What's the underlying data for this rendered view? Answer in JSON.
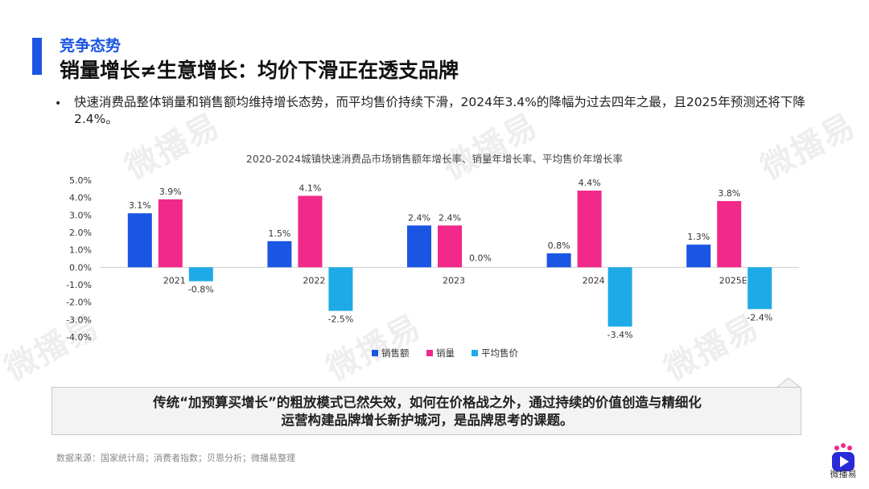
{
  "header": {
    "section_label": "竞争态势",
    "title": "销量增长≠生意增长：均价下滑正在透支品牌"
  },
  "bullet": {
    "marker": "•",
    "text": "快速消费品整体销量和销售额均维持增长态势，而平均售价持续下滑，2024年3.4%的降幅为过去四年之最，且2025年预测还将下降2.4%。"
  },
  "chart_data": {
    "type": "bar",
    "title": "2020-2024城镇快速消费品市场销售额年增长率、销量年增长率、平均售价年增长率",
    "categories": [
      "2021",
      "2022",
      "2023",
      "2024",
      "2025E"
    ],
    "series": [
      {
        "name": "销售额",
        "color": "#1a55e3",
        "values": [
          3.1,
          1.5,
          2.4,
          0.8,
          1.3
        ],
        "labels": [
          "3.1%",
          "1.5%",
          "2.4%",
          "0.8%",
          "1.3%"
        ]
      },
      {
        "name": "销量",
        "color": "#f0298a",
        "values": [
          3.9,
          4.1,
          2.4,
          4.4,
          3.8
        ],
        "labels": [
          "3.9%",
          "4.1%",
          "2.4%",
          "4.4%",
          "3.8%"
        ]
      },
      {
        "name": "平均售价",
        "color": "#1eaae6",
        "values": [
          -0.8,
          -2.5,
          0.0,
          -3.4,
          -2.4
        ],
        "labels": [
          "-0.8%",
          "-2.5%",
          "0.0%",
          "-3.4%",
          "-2.4%"
        ]
      }
    ],
    "ylim": [
      -4.0,
      5.0
    ],
    "yticks": [
      5.0,
      4.0,
      3.0,
      2.0,
      1.0,
      0.0,
      -1.0,
      -2.0,
      -3.0,
      -4.0
    ],
    "ytick_labels": [
      "5.0%",
      "4.0%",
      "3.0%",
      "2.0%",
      "1.0%",
      "0.0%",
      "-1.0%",
      "-2.0%",
      "-3.0%",
      "-4.0%"
    ],
    "legend_position": "bottom",
    "grid": false
  },
  "callout": {
    "line1": "传统“加预算买增长”的粗放模式已然失效，如何在价格战之外，通过持续的价值创造与精细化",
    "line2": "运营构建品牌增长新护城河，是品牌思考的课题。"
  },
  "source": "数据来源：国家统计局；消费者指数；贝恩分析；微播易整理",
  "watermark": "微播易",
  "logo": {
    "text": "微播易"
  }
}
